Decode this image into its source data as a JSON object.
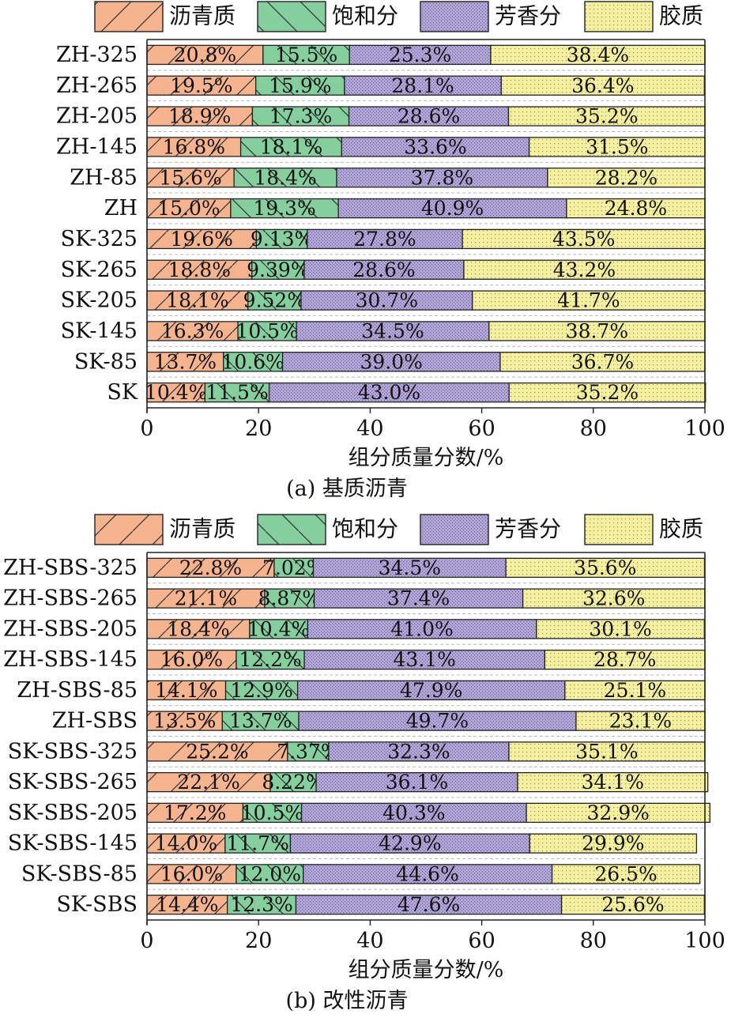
{
  "chart_data": [
    {
      "type": "bar",
      "orientation": "horizontal",
      "stacked": true,
      "caption": "(a) 基质沥青",
      "xlabel": "组分质量分数/%",
      "xlim": [
        0,
        100
      ],
      "xticks": [
        "0",
        "20",
        "40",
        "60",
        "80",
        "100"
      ],
      "legend_position": "top",
      "categories": [
        "ZH-325",
        "ZH-265",
        "ZH-205",
        "ZH-145",
        "ZH-85",
        "ZH",
        "SK-325",
        "SK-265",
        "SK-205",
        "SK-145",
        "SK-85",
        "SK"
      ],
      "series": [
        {
          "name": "沥青质",
          "values": [
            20.8,
            19.5,
            18.9,
            16.8,
            15.6,
            15.0,
            19.6,
            18.8,
            18.1,
            16.3,
            13.7,
            10.4
          ],
          "labels": [
            "20.8%",
            "19.5%",
            "18.9%",
            "16.8%",
            "15.6%",
            "15.0%",
            "19.6%",
            "18.8%",
            "18.1%",
            "16.3%",
            "13.7%",
            "10.4%"
          ]
        },
        {
          "name": "饱和分",
          "values": [
            15.5,
            15.9,
            17.3,
            18.1,
            18.4,
            19.3,
            9.13,
            9.39,
            9.52,
            10.5,
            10.6,
            11.5
          ],
          "labels": [
            "15.5%",
            "15.9%",
            "17.3%",
            "18.1%",
            "18.4%",
            "19.3%",
            "9.13%",
            "9.39%",
            "9.52%",
            "10.5%",
            "10.6%",
            "11.5%"
          ]
        },
        {
          "name": "芳香分",
          "values": [
            25.3,
            28.1,
            28.6,
            33.6,
            37.8,
            40.9,
            27.8,
            28.6,
            30.7,
            34.5,
            39.0,
            43.0
          ],
          "labels": [
            "25.3%",
            "28.1%",
            "28.6%",
            "33.6%",
            "37.8%",
            "40.9%",
            "27.8%",
            "28.6%",
            "30.7%",
            "34.5%",
            "39.0%",
            "43.0%"
          ]
        },
        {
          "name": "胶质",
          "values": [
            38.4,
            36.4,
            35.2,
            31.5,
            28.2,
            24.8,
            43.5,
            43.2,
            41.7,
            38.7,
            36.7,
            35.2
          ],
          "labels": [
            "38.4%",
            "36.4%",
            "35.2%",
            "31.5%",
            "28.2%",
            "24.8%",
            "43.5%",
            "43.2%",
            "41.7%",
            "38.7%",
            "36.7%",
            "35.2%"
          ]
        }
      ]
    },
    {
      "type": "bar",
      "orientation": "horizontal",
      "stacked": true,
      "caption": "(b) 改性沥青",
      "xlabel": "组分质量分数/%",
      "xlim": [
        0,
        100
      ],
      "xticks": [
        "0",
        "20",
        "40",
        "60",
        "80",
        "100"
      ],
      "legend_position": "top",
      "categories": [
        "ZH-SBS-325",
        "ZH-SBS-265",
        "ZH-SBS-205",
        "ZH-SBS-145",
        "ZH-SBS-85",
        "ZH-SBS",
        "SK-SBS-325",
        "SK-SBS-265",
        "SK-SBS-205",
        "SK-SBS-145",
        "SK-SBS-85",
        "SK-SBS"
      ],
      "series": [
        {
          "name": "沥青质",
          "values": [
            22.8,
            21.1,
            18.4,
            16.0,
            14.1,
            13.5,
            25.2,
            22.1,
            17.2,
            14.0,
            16.0,
            14.4
          ],
          "labels": [
            "22.8%",
            "21.1%",
            "18.4%",
            "16.0%",
            "14.1%",
            "13.5%",
            "25.2%",
            "22.1%",
            "17.2%",
            "14.0%",
            "16.0%",
            "14.4%"
          ]
        },
        {
          "name": "饱和分",
          "values": [
            7.02,
            8.87,
            10.4,
            12.2,
            12.9,
            13.7,
            7.37,
            8.22,
            10.5,
            11.7,
            12.0,
            12.3
          ],
          "labels": [
            "7.02%",
            "8.87%",
            "10.4%",
            "12.2%",
            "12.9%",
            "13.7%",
            "7.37%",
            "8.22%",
            "10.5%",
            "11.7%",
            "12.0%",
            "12.3%"
          ]
        },
        {
          "name": "芳香分",
          "values": [
            34.5,
            37.4,
            41.0,
            43.1,
            47.9,
            49.7,
            32.3,
            36.1,
            40.3,
            42.9,
            44.6,
            47.6
          ],
          "labels": [
            "34.5%",
            "37.4%",
            "41.0%",
            "43.1%",
            "47.9%",
            "49.7%",
            "32.3%",
            "36.1%",
            "40.3%",
            "42.9%",
            "44.6%",
            "47.6%"
          ]
        },
        {
          "name": "胶质",
          "values": [
            35.6,
            32.6,
            30.1,
            28.7,
            25.1,
            23.1,
            35.1,
            34.1,
            32.9,
            29.9,
            26.5,
            25.6
          ],
          "labels": [
            "35.6%",
            "32.6%",
            "30.1%",
            "28.7%",
            "25.1%",
            "23.1%",
            "35.1%",
            "34.1%",
            "32.9%",
            "29.9%",
            "26.5%",
            "25.6%"
          ]
        }
      ]
    }
  ],
  "colors": {
    "沥青质": "#f6b48e",
    "饱和分": "#85cf9f",
    "芳香分": "#b4a9d9",
    "胶质": "#f4f0a0"
  }
}
